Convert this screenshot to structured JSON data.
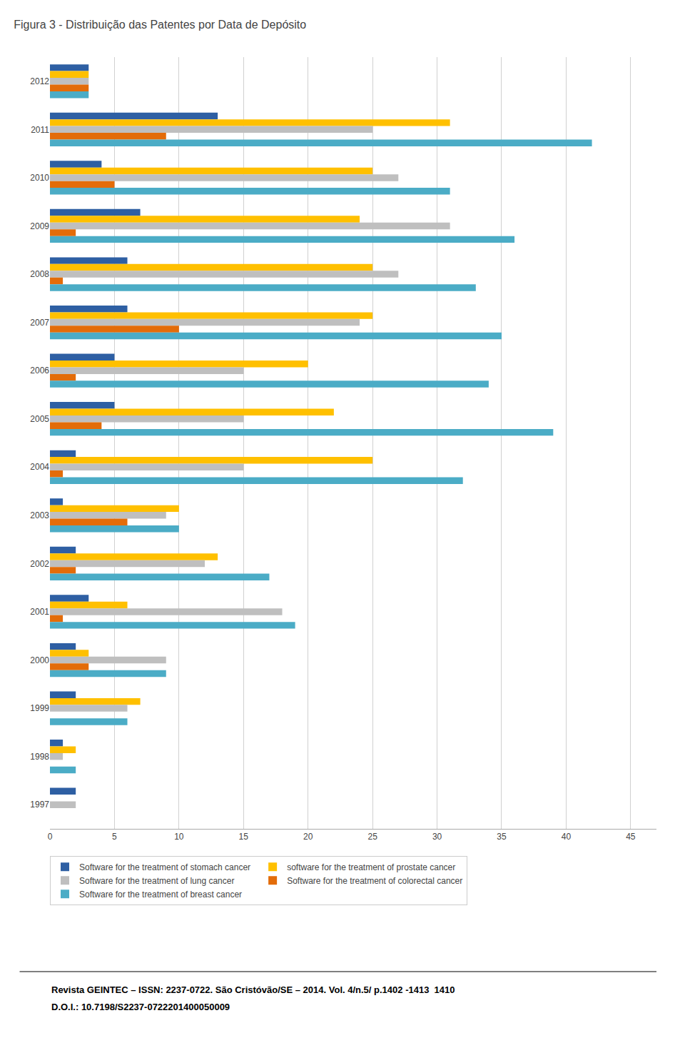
{
  "chart_data": {
    "type": "bar",
    "orientation": "horizontal",
    "title": "Figura 3 - Distribuição das Patentes por Data de Depósito",
    "categories": [
      "2012",
      "2011",
      "2010",
      "2009",
      "2008",
      "2007",
      "2006",
      "2005",
      "2004",
      "2003",
      "2002",
      "2001",
      "2000",
      "1999",
      "1998",
      "1997"
    ],
    "series": [
      {
        "name": "Software for the treatment of stomach cancer",
        "color": "#2E5FA3",
        "values": [
          3,
          13,
          4,
          7,
          6,
          6,
          5,
          5,
          2,
          1,
          2,
          3,
          2,
          2,
          1,
          2
        ]
      },
      {
        "name": "software for the treatment of prostate cancer",
        "color": "#FFC000",
        "values": [
          3,
          31,
          25,
          24,
          25,
          25,
          20,
          22,
          25,
          10,
          13,
          6,
          3,
          7,
          2,
          0
        ]
      },
      {
        "name": "Software for the treatment of lung cancer",
        "color": "#BFBFBF",
        "values": [
          3,
          25,
          27,
          31,
          27,
          24,
          15,
          15,
          15,
          9,
          12,
          18,
          9,
          6,
          1,
          2
        ]
      },
      {
        "name": "Software for the treatment of colorectal cancer",
        "color": "#E36C09",
        "values": [
          3,
          9,
          5,
          2,
          1,
          10,
          2,
          4,
          1,
          6,
          2,
          1,
          3,
          0,
          0,
          0
        ]
      },
      {
        "name": "Software for the treatment of breast cancer",
        "color": "#4BACC6",
        "values": [
          3,
          42,
          31,
          36,
          33,
          35,
          34,
          39,
          32,
          10,
          17,
          19,
          9,
          6,
          2,
          0
        ]
      }
    ],
    "xlim": [
      0,
      47
    ],
    "xticks": [
      0,
      5,
      10,
      15,
      20,
      25,
      30,
      35,
      40,
      45
    ],
    "grid": true,
    "legend": "bottom left",
    "annotations": [
      "Revista GEINTEC – ISSN: 2237-0722. São Cristóvão/SE – 2014. Vol. 4/n.5/ p.1402 -1413  1410",
      "D.O.I.: 10.7198/S2237-0722201400050009"
    ]
  }
}
